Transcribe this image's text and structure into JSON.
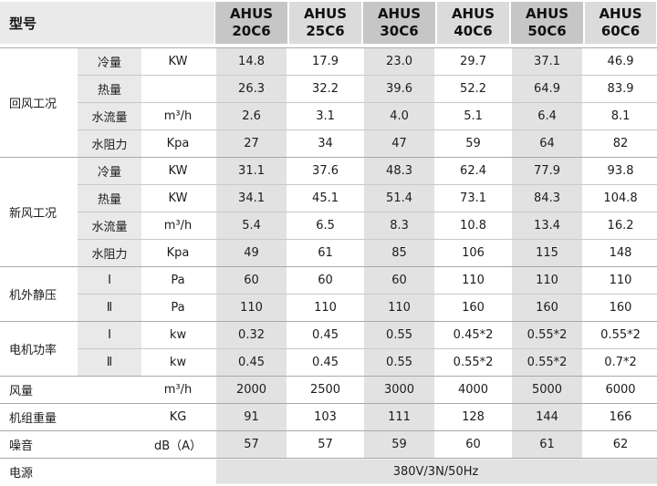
{
  "table": {
    "corner_label": "型号",
    "models": [
      {
        "brand": "AHUS",
        "code": "20C6"
      },
      {
        "brand": "AHUS",
        "code": "25C6"
      },
      {
        "brand": "AHUS",
        "code": "30C6"
      },
      {
        "brand": "AHUS",
        "code": "40C6"
      },
      {
        "brand": "AHUS",
        "code": "50C6"
      },
      {
        "brand": "AHUS",
        "code": "60C6"
      }
    ],
    "groups": [
      {
        "label": "回风工况",
        "rows": [
          {
            "param": "冷量",
            "unit": "KW",
            "values": [
              "14.8",
              "17.9",
              "23.0",
              "29.7",
              "37.1",
              "46.9"
            ]
          },
          {
            "param": "热量",
            "unit": "",
            "values": [
              "26.3",
              "32.2",
              "39.6",
              "52.2",
              "64.9",
              "83.9"
            ]
          },
          {
            "param": "水流量",
            "unit": "m³/h",
            "values": [
              "2.6",
              "3.1",
              "4.0",
              "5.1",
              "6.4",
              "8.1"
            ]
          },
          {
            "param": "水阻力",
            "unit": "Kpa",
            "values": [
              "27",
              "34",
              "47",
              "59",
              "64",
              "82"
            ]
          }
        ]
      },
      {
        "label": "新风工况",
        "rows": [
          {
            "param": "冷量",
            "unit": "KW",
            "values": [
              "31.1",
              "37.6",
              "48.3",
              "62.4",
              "77.9",
              "93.8"
            ]
          },
          {
            "param": "热量",
            "unit": "KW",
            "values": [
              "34.1",
              "45.1",
              "51.4",
              "73.1",
              "84.3",
              "104.8"
            ]
          },
          {
            "param": "水流量",
            "unit": "m³/h",
            "values": [
              "5.4",
              "6.5",
              "8.3",
              "10.8",
              "13.4",
              "16.2"
            ]
          },
          {
            "param": "水阻力",
            "unit": "Kpa",
            "values": [
              "49",
              "61",
              "85",
              "106",
              "115",
              "148"
            ]
          }
        ]
      },
      {
        "label": "机外静压",
        "rows": [
          {
            "param": "Ⅰ",
            "unit": "Pa",
            "values": [
              "60",
              "60",
              "60",
              "110",
              "110",
              "110"
            ]
          },
          {
            "param": "Ⅱ",
            "unit": "Pa",
            "values": [
              "110",
              "110",
              "110",
              "160",
              "160",
              "160"
            ]
          }
        ]
      },
      {
        "label": "电机功率",
        "rows": [
          {
            "param": "Ⅰ",
            "unit": "kw",
            "values": [
              "0.32",
              "0.45",
              "0.55",
              "0.45*2",
              "0.55*2",
              "0.55*2"
            ]
          },
          {
            "param": "Ⅱ",
            "unit": "kw",
            "values": [
              "0.45",
              "0.45",
              "0.55",
              "0.55*2",
              "0.55*2",
              "0.7*2"
            ]
          }
        ]
      }
    ],
    "simple_rows": [
      {
        "label": "风量",
        "unit": "m³/h",
        "values": [
          "2000",
          "2500",
          "3000",
          "4000",
          "5000",
          "6000"
        ]
      },
      {
        "label": "机组重量",
        "unit": "KG",
        "values": [
          "91",
          "103",
          "111",
          "128",
          "144",
          "166"
        ]
      },
      {
        "label": "噪音",
        "unit": "dB（A）",
        "values": [
          "57",
          "57",
          "59",
          "60",
          "61",
          "62"
        ]
      }
    ],
    "power_row": {
      "label": "电源",
      "value": "380V/3N/50Hz"
    }
  },
  "colors": {
    "header_dark": "#c6c6c6",
    "header_light": "#dbdbdb",
    "corner_bg": "#eaeaea",
    "param_bg": "#e9e9e9",
    "stripe_bg": "#e2e2e2",
    "line": "#c9c9c9",
    "line_strong": "#a9a9a9",
    "text": "#1c1c1c"
  }
}
